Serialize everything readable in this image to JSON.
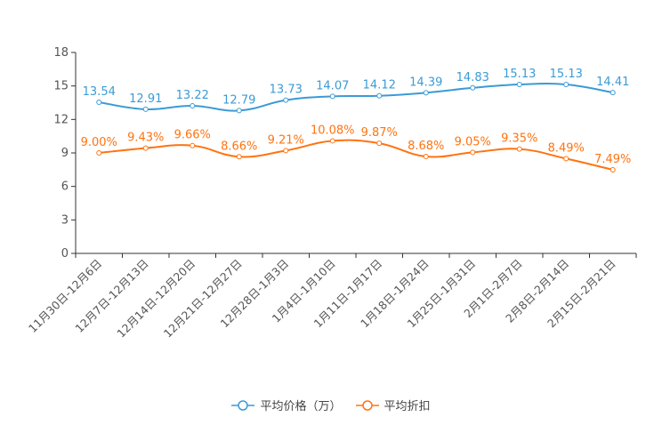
{
  "chart_data": {
    "type": "line",
    "categories": [
      "11月30日-12月6日",
      "12月7日-12月13日",
      "12月14日-12月20日",
      "12月21日-12月27日",
      "12月28日-1月3日",
      "1月4日-1月10日",
      "1月11日-1月17日",
      "1月18日-1月24日",
      "1月25日-1月31日",
      "2月1日-2月7日",
      "2月8日-2月14日",
      "2月15日-2月21日"
    ],
    "series": [
      {
        "name": "平均价格（万）",
        "color": "#3a9bd5",
        "values": [
          13.54,
          12.91,
          13.22,
          12.79,
          13.73,
          14.07,
          14.12,
          14.39,
          14.83,
          15.13,
          15.13,
          14.41
        ],
        "labels": [
          "13.54",
          "12.91",
          "13.22",
          "12.79",
          "13.73",
          "14.07",
          "14.12",
          "14.39",
          "14.83",
          "15.13",
          "15.13",
          "14.41"
        ]
      },
      {
        "name": "平均折扣",
        "color": "#ff7310",
        "values": [
          9.0,
          9.43,
          9.66,
          8.66,
          9.21,
          10.08,
          9.87,
          8.68,
          9.05,
          9.35,
          8.49,
          7.49
        ],
        "labels": [
          "9.00%",
          "9.43%",
          "9.66%",
          "8.66%",
          "9.21%",
          "10.08%",
          "9.87%",
          "8.68%",
          "9.05%",
          "9.35%",
          "8.49%",
          "7.49%"
        ]
      }
    ],
    "yticks": [
      "0",
      "3",
      "6",
      "9",
      "12",
      "15",
      "18"
    ],
    "ylim": [
      0,
      18
    ],
    "grid": false,
    "legend": "bottom-center"
  }
}
